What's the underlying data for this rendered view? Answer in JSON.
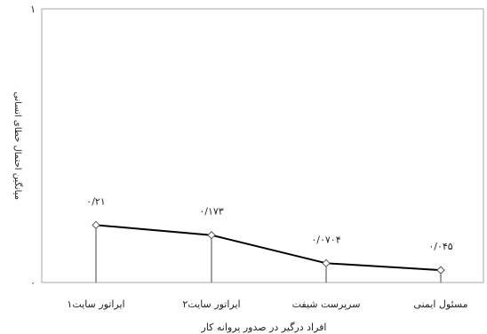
{
  "chart_data": {
    "type": "line",
    "categories": [
      "ایراتور سایت۱",
      "ایراتور سایت۲",
      "سرپرست شیفت",
      "مسئول ایمنی"
    ],
    "values": [
      0.21,
      0.173,
      0.0704,
      0.045
    ],
    "data_labels": [
      "۰/۲۱",
      "۰/۱۷۳",
      "۰/۰۷۰۴",
      "۰/۰۴۵"
    ],
    "xlabel": "افراد درگیر در صدور پروانه کار",
    "ylabel": "میانگین احتمال خطای انسانی",
    "ylim": [
      0,
      1
    ],
    "y_ticks": [
      {
        "value": 0,
        "label": "۰"
      },
      {
        "value": 1,
        "label": "۱"
      }
    ],
    "drop_lines": true,
    "grid": false,
    "legend": "none",
    "colors": {
      "line": "#000000",
      "marker_fill": "#ffffff",
      "marker_stroke": "#555555",
      "drop_line": "#444444",
      "axis": "#999999"
    }
  }
}
